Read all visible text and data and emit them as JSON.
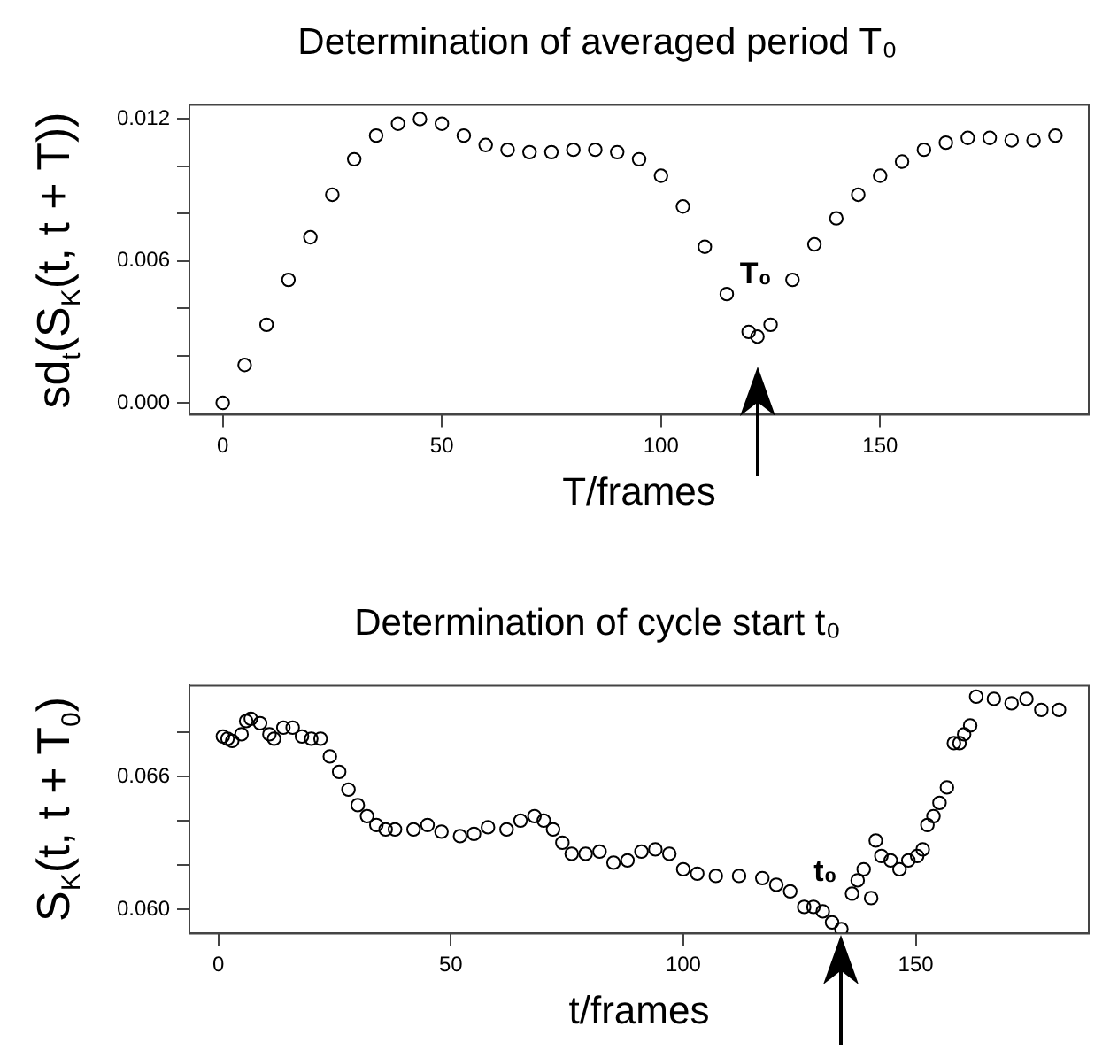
{
  "chart_data": [
    {
      "type": "scatter",
      "title": "Determination of averaged period T₀",
      "xlabel": "T/frames",
      "ylabel": "sd$_{t}$(S$_{K}$(t, t + T))",
      "color": "#000000",
      "marker": "circle",
      "legend": false,
      "x": [
        0,
        5,
        10,
        15,
        20,
        25,
        30,
        35,
        40,
        45,
        50,
        55,
        60,
        65,
        70,
        75,
        80,
        85,
        90,
        95,
        100,
        105,
        110,
        115,
        120,
        122,
        125,
        130,
        135,
        140,
        145,
        150,
        155,
        160,
        165,
        170,
        175,
        180,
        185,
        190
      ],
      "values": [
        0,
        0.0016,
        0.0033,
        0.0052,
        0.007,
        0.0088,
        0.0103,
        0.0113,
        0.0118,
        0.012,
        0.0118,
        0.0113,
        0.0109,
        0.0107,
        0.0106,
        0.0106,
        0.0107,
        0.0107,
        0.0106,
        0.0103,
        0.0096,
        0.0083,
        0.0066,
        0.0046,
        0.003,
        0.0028,
        0.0033,
        0.0052,
        0.0067,
        0.0078,
        0.0088,
        0.0096,
        0.0102,
        0.0107,
        0.011,
        0.0112,
        0.0112,
        0.0111,
        0.0111,
        0.0113
      ],
      "xlim": [
        -7.6,
        197.6
      ],
      "ylim": [
        -0.0005,
        0.0126
      ],
      "xticks": [
        0,
        50,
        100,
        150
      ],
      "yticks": [
        {
          "value": 0,
          "label": "0.000"
        },
        {
          "value": 0.002,
          "label": null
        },
        {
          "value": 0.004,
          "label": null
        },
        {
          "value": 0.006,
          "label": "0.006"
        },
        {
          "value": 0.008,
          "label": null
        },
        {
          "value": 0.01,
          "label": null
        },
        {
          "value": 0.012,
          "label": "0.012"
        }
      ],
      "annotations": [
        {
          "text": "T₀",
          "x": 122,
          "y": 0.0028
        }
      ]
    },
    {
      "type": "scatter",
      "title": "Determination of cycle start t₀",
      "xlabel": "t/frames",
      "ylabel": "S$_{K}$(t, t + T$_{0}$)",
      "color": "#000000",
      "marker": "circle",
      "legend": false,
      "x": [
        1,
        2,
        3,
        5,
        6,
        7,
        9,
        11,
        12,
        14,
        16,
        18,
        20,
        22,
        24,
        26,
        28,
        30,
        32,
        34,
        36,
        38,
        42,
        45,
        48,
        52,
        55,
        58,
        62,
        65,
        68,
        70,
        72,
        74,
        76,
        79,
        82,
        85,
        88,
        91,
        94,
        97,
        100,
        103,
        107,
        112,
        117,
        120,
        123,
        126,
        128,
        130,
        132,
        134,
        136.3,
        137.5,
        138.8,
        140.4,
        141.4,
        142.6,
        144.6,
        146.5,
        148.4,
        150.3,
        151.5,
        152.5,
        153.8,
        155.1,
        156.7,
        158.2,
        159.4,
        160.4,
        161.7,
        163,
        166.8,
        170.6,
        173.8,
        177,
        180.8
      ],
      "values": [
        0.0678,
        0.0677,
        0.0676,
        0.0679,
        0.0685,
        0.0686,
        0.0684,
        0.0679,
        0.0677,
        0.0682,
        0.0682,
        0.0678,
        0.0677,
        0.0677,
        0.0669,
        0.0662,
        0.0654,
        0.0647,
        0.0642,
        0.0638,
        0.0636,
        0.0636,
        0.0636,
        0.0638,
        0.0635,
        0.0633,
        0.0634,
        0.0637,
        0.0636,
        0.064,
        0.0642,
        0.064,
        0.0636,
        0.063,
        0.0625,
        0.0625,
        0.0626,
        0.0621,
        0.0622,
        0.0626,
        0.0627,
        0.0625,
        0.0618,
        0.0616,
        0.0615,
        0.0615,
        0.0614,
        0.0611,
        0.0608,
        0.0601,
        0.0601,
        0.0599,
        0.0594,
        0.0591,
        0.0607,
        0.0613,
        0.0618,
        0.0605,
        0.0631,
        0.0624,
        0.0622,
        0.0618,
        0.0622,
        0.0624,
        0.0627,
        0.0638,
        0.0642,
        0.0648,
        0.0655,
        0.0675,
        0.0675,
        0.0679,
        0.0683,
        0.0696,
        0.0695,
        0.0693,
        0.0695,
        0.069,
        0.069
      ],
      "xlim": [
        -6.2,
        187.2
      ],
      "ylim": [
        0.0589,
        0.0701
      ],
      "xticks": [
        0,
        50,
        100,
        150
      ],
      "yticks": [
        {
          "value": 0.06,
          "label": "0.060"
        },
        {
          "value": 0.062,
          "label": null
        },
        {
          "value": 0.064,
          "label": null
        },
        {
          "value": 0.066,
          "label": "0.066"
        },
        {
          "value": 0.068,
          "label": null
        }
      ],
      "annotations": [
        {
          "text": "t₀",
          "x": 134,
          "y": 0.0591
        }
      ]
    }
  ]
}
